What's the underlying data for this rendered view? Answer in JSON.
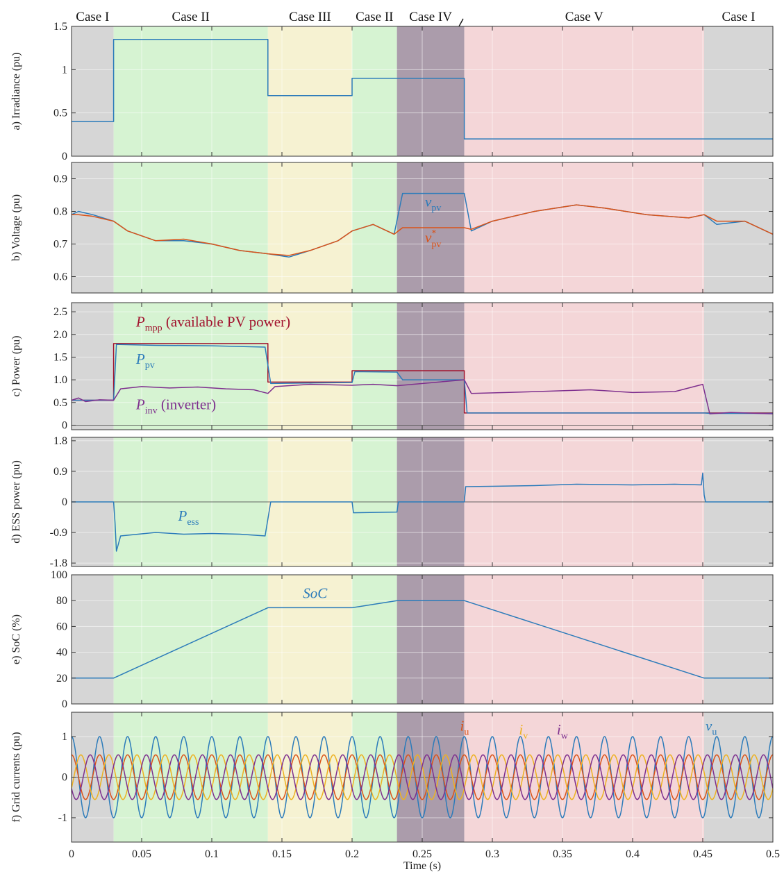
{
  "colors": {
    "blue": "#2b7bba",
    "orange": "#d95319",
    "yellow": "#edb120",
    "purple": "#7e2f8e",
    "darkred": "#a2142f",
    "case_I": "#d6d6d6",
    "case_II": "#d6f3d2",
    "case_III": "#f6f2d2",
    "case_IV": "#ab9cab",
    "case_V": "#f4d6d8"
  },
  "xaxis": {
    "label": "Time (s)",
    "range": [
      0,
      0.5
    ],
    "ticks": [
      "0",
      "0.05",
      "0.1",
      "0.15",
      "0.2",
      "0.25",
      "0.3",
      "0.35",
      "0.4",
      "0.45",
      "0.5"
    ]
  },
  "cases": [
    {
      "label": "Case I",
      "from": 0,
      "to": 0.03,
      "color": "case_I"
    },
    {
      "label": "Case II",
      "from": 0.03,
      "to": 0.14,
      "color": "case_II"
    },
    {
      "label": "Case III",
      "from": 0.14,
      "to": 0.2,
      "color": "case_III"
    },
    {
      "label": "Case II",
      "from": 0.2,
      "to": 0.232,
      "color": "case_II"
    },
    {
      "label": "Case IV",
      "from": 0.232,
      "to": 0.28,
      "color": "case_IV"
    },
    {
      "label": "Case V",
      "from": 0.28,
      "to": 0.451,
      "color": "case_V"
    },
    {
      "label": "Case I",
      "from": 0.451,
      "to": 0.5,
      "color": "case_I"
    }
  ],
  "chart_data": [
    {
      "type": "line",
      "id": "irradiance",
      "ylabel": "a) Irradiance (pu)",
      "ylim": [
        0,
        1.5
      ],
      "yticks": [
        "0",
        "0.5",
        "1",
        "1.5"
      ],
      "series": [
        {
          "color": "blue",
          "x": [
            0,
            0.03,
            0.03,
            0.14,
            0.14,
            0.2,
            0.2,
            0.28,
            0.28,
            0.5
          ],
          "y": [
            0.4,
            0.4,
            1.35,
            1.35,
            0.7,
            0.7,
            0.9,
            0.9,
            0.2,
            0.2
          ]
        }
      ]
    },
    {
      "type": "line",
      "id": "voltage",
      "ylabel": "b) Voltage (pu)",
      "ylim": [
        0.55,
        0.95
      ],
      "yticks": [
        "0.6",
        "0.7",
        "0.8",
        "0.9"
      ],
      "series": [
        {
          "name": "v_pv",
          "color": "blue",
          "x": [
            0,
            0.005,
            0.015,
            0.03,
            0.04,
            0.06,
            0.08,
            0.1,
            0.12,
            0.14,
            0.155,
            0.17,
            0.19,
            0.2,
            0.215,
            0.23,
            0.236,
            0.28,
            0.285,
            0.3,
            0.33,
            0.36,
            0.38,
            0.41,
            0.44,
            0.451,
            0.46,
            0.48,
            0.5
          ],
          "y": [
            0.79,
            0.8,
            0.79,
            0.77,
            0.74,
            0.71,
            0.71,
            0.7,
            0.68,
            0.67,
            0.66,
            0.68,
            0.71,
            0.74,
            0.76,
            0.73,
            0.855,
            0.855,
            0.74,
            0.77,
            0.8,
            0.82,
            0.81,
            0.79,
            0.78,
            0.79,
            0.76,
            0.77,
            0.73
          ]
        },
        {
          "name": "v*_pv",
          "color": "orange",
          "x": [
            0,
            0.005,
            0.015,
            0.03,
            0.04,
            0.06,
            0.08,
            0.1,
            0.12,
            0.14,
            0.155,
            0.17,
            0.19,
            0.2,
            0.215,
            0.23,
            0.236,
            0.28,
            0.285,
            0.3,
            0.33,
            0.36,
            0.38,
            0.41,
            0.44,
            0.451,
            0.46,
            0.48,
            0.5
          ],
          "y": [
            0.79,
            0.79,
            0.785,
            0.77,
            0.74,
            0.71,
            0.715,
            0.7,
            0.68,
            0.67,
            0.665,
            0.68,
            0.71,
            0.74,
            0.76,
            0.73,
            0.75,
            0.75,
            0.745,
            0.77,
            0.8,
            0.82,
            0.81,
            0.79,
            0.78,
            0.79,
            0.77,
            0.77,
            0.73
          ]
        }
      ],
      "annotations": [
        {
          "text": "v",
          "sub": "pv",
          "sup": "",
          "x": 0.252,
          "y": 0.815,
          "color": "blue"
        },
        {
          "text": "v",
          "sub": "pv",
          "sup": "*",
          "x": 0.252,
          "y": 0.705,
          "color": "orange"
        }
      ]
    },
    {
      "type": "line",
      "id": "power",
      "ylabel": "c) Power (pu)",
      "ylim": [
        -0.1,
        2.7
      ],
      "yticks": [
        "0",
        "0.5",
        "1.0",
        "1.5",
        "2.0",
        "2.5"
      ],
      "series": [
        {
          "name": "P_mpp",
          "color": "darkred",
          "x": [
            0,
            0.03,
            0.03,
            0.14,
            0.14,
            0.2,
            0.2,
            0.28,
            0.28,
            0.5
          ],
          "y": [
            0.55,
            0.55,
            1.8,
            1.8,
            0.95,
            0.95,
            1.2,
            1.2,
            0.27,
            0.27
          ]
        },
        {
          "name": "P_pv",
          "color": "blue",
          "x": [
            0,
            0.03,
            0.032,
            0.06,
            0.1,
            0.138,
            0.142,
            0.2,
            0.202,
            0.232,
            0.236,
            0.28,
            0.282,
            0.451,
            0.455,
            0.5
          ],
          "y": [
            0.55,
            0.55,
            1.78,
            1.76,
            1.75,
            1.72,
            0.92,
            0.94,
            1.18,
            1.17,
            1.0,
            1.0,
            0.27,
            0.27,
            0.26,
            0.26
          ]
        },
        {
          "name": "P_inv",
          "color": "purple",
          "x": [
            0,
            0.005,
            0.01,
            0.02,
            0.03,
            0.035,
            0.05,
            0.07,
            0.09,
            0.11,
            0.13,
            0.14,
            0.145,
            0.17,
            0.2,
            0.215,
            0.232,
            0.28,
            0.285,
            0.31,
            0.34,
            0.37,
            0.4,
            0.43,
            0.45,
            0.455,
            0.47,
            0.49,
            0.5
          ],
          "y": [
            0.55,
            0.6,
            0.52,
            0.56,
            0.55,
            0.8,
            0.85,
            0.82,
            0.84,
            0.8,
            0.78,
            0.7,
            0.85,
            0.9,
            0.88,
            0.9,
            0.87,
            1.0,
            0.7,
            0.72,
            0.75,
            0.78,
            0.72,
            0.74,
            0.9,
            0.25,
            0.28,
            0.26,
            0.25
          ]
        }
      ],
      "annotations": [
        {
          "text": "P",
          "sub": "mpp",
          "tail": " (available  PV  power)",
          "x": 0.046,
          "y": 2.17,
          "color": "darkred"
        },
        {
          "text": "P",
          "sub": "pv",
          "tail": "",
          "x": 0.046,
          "y": 1.35,
          "color": "blue"
        },
        {
          "text": "P",
          "sub": "inv",
          "tail": " (inverter)",
          "x": 0.046,
          "y": 0.35,
          "color": "purple"
        }
      ]
    },
    {
      "type": "line",
      "id": "ess",
      "ylabel": "d) ESS power (pu)",
      "ylim": [
        -1.9,
        1.9
      ],
      "yticks": [
        "-1.8",
        "-0.9",
        "0",
        "0.9",
        "1.8"
      ],
      "series": [
        {
          "name": "P_ess",
          "color": "blue",
          "x": [
            0,
            0.03,
            0.031,
            0.032,
            0.035,
            0.06,
            0.08,
            0.1,
            0.12,
            0.138,
            0.14,
            0.142,
            0.2,
            0.201,
            0.232,
            0.233,
            0.28,
            0.281,
            0.3,
            0.33,
            0.36,
            0.4,
            0.43,
            0.449,
            0.45,
            0.451,
            0.452,
            0.5
          ],
          "y": [
            0,
            0,
            -0.6,
            -1.45,
            -1.0,
            -0.9,
            -0.95,
            -0.93,
            -0.95,
            -1.0,
            -0.5,
            0,
            0,
            -0.32,
            -0.3,
            0,
            0,
            0.45,
            0.46,
            0.48,
            0.52,
            0.5,
            0.52,
            0.5,
            0.85,
            0.2,
            0,
            0
          ]
        }
      ],
      "annotations": [
        {
          "text": "P",
          "sub": "ess",
          "tail": "",
          "x": 0.076,
          "y": -0.55,
          "color": "blue"
        }
      ]
    },
    {
      "type": "line",
      "id": "soc",
      "ylabel": "e) SoC (%)",
      "ylim": [
        0,
        100
      ],
      "yticks": [
        "0",
        "20",
        "40",
        "60",
        "80",
        "100"
      ],
      "series": [
        {
          "name": "SoC",
          "color": "blue",
          "x": [
            0,
            0.03,
            0.14,
            0.2,
            0.232,
            0.28,
            0.451,
            0.5
          ],
          "y": [
            20,
            20,
            74.5,
            74.5,
            80,
            80,
            20,
            20
          ]
        }
      ],
      "annotations": [
        {
          "text": "SoC",
          "sub": "",
          "tail": "",
          "x": 0.165,
          "y": 82,
          "color": "blue"
        }
      ]
    },
    {
      "type": "line",
      "id": "grid",
      "ylabel": "f) Grid currents (pu)",
      "ylim": [
        -1.6,
        1.6
      ],
      "yticks": [
        "-1",
        "0",
        "1"
      ],
      "series": [
        {
          "name": "v_u",
          "color": "blue",
          "frequency": 50,
          "amplitude": 1,
          "phase_deg": 90
        },
        {
          "name": "i_u",
          "color": "orange",
          "frequency": 50,
          "amplitude": 0.55,
          "phase_deg": 90
        },
        {
          "name": "i_v",
          "color": "yellow",
          "frequency": 50,
          "amplitude": 0.55,
          "phase_deg": -30
        },
        {
          "name": "i_w",
          "color": "purple",
          "frequency": 50,
          "amplitude": 0.55,
          "phase_deg": 210
        }
      ],
      "annotations": [
        {
          "text": "i",
          "sub": "u",
          "tail": "",
          "x": 0.277,
          "y": 1.15,
          "color": "orange"
        },
        {
          "text": "i",
          "sub": "v",
          "tail": "",
          "x": 0.319,
          "y": 1.05,
          "color": "yellow"
        },
        {
          "text": "i",
          "sub": "w",
          "tail": "",
          "x": 0.346,
          "y": 1.05,
          "color": "purple"
        },
        {
          "text": "v",
          "sub": "u",
          "tail": "",
          "x": 0.452,
          "y": 1.15,
          "color": "blue"
        }
      ]
    }
  ]
}
